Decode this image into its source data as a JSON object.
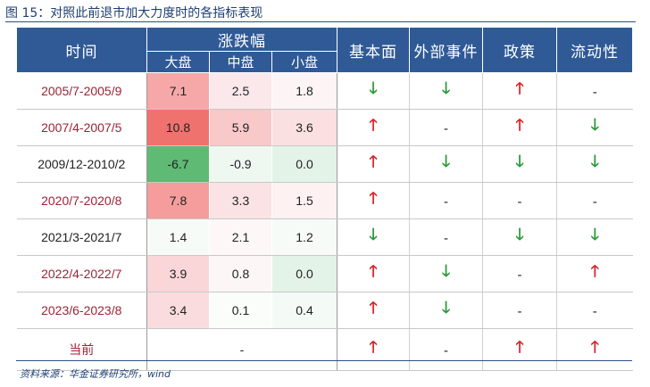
{
  "title": "图 15：对照此前退市加大力度时的各指标表现",
  "header": {
    "time": "时间",
    "change": "涨跌幅",
    "large": "大盘",
    "mid": "中盘",
    "small": "小盘",
    "fundamental": "基本面",
    "external": "外部事件",
    "policy": "政策",
    "liquidity": "流动性"
  },
  "colors": {
    "header_bg": "#2f5a96",
    "up": "#d9262c",
    "down": "#2a9a3c",
    "period_red": "#9b2335"
  },
  "rows": [
    {
      "period": "2005/7-2005/9",
      "period_color": "red",
      "large": "7.1",
      "mid": "2.5",
      "small": "1.8",
      "bg": [
        "#f6a8a8",
        "#fbe8ea",
        "#fdf5f5"
      ],
      "fundamental": "down",
      "external": "down",
      "policy": "up",
      "liquidity": "dash"
    },
    {
      "period": "2007/4-2007/5",
      "period_color": "red",
      "large": "10.8",
      "mid": "5.9",
      "small": "3.6",
      "bg": [
        "#f0726f",
        "#f9c8c9",
        "#fbe0e2"
      ],
      "fundamental": "up",
      "external": "dash",
      "policy": "up",
      "liquidity": "down"
    },
    {
      "period": "2009/12-2010/2",
      "period_color": "black",
      "large": "-6.7",
      "mid": "-0.9",
      "small": "0.0",
      "bg": [
        "#5fba73",
        "#eef7f0",
        "#e4f3e8"
      ],
      "fundamental": "up",
      "external": "down",
      "policy": "down",
      "liquidity": "down"
    },
    {
      "period": "2020/7-2020/8",
      "period_color": "red",
      "large": "7.8",
      "mid": "3.3",
      "small": "1.5",
      "bg": [
        "#f49d9c",
        "#fbe3e5",
        "#fdf1f2"
      ],
      "fundamental": "up",
      "external": "dash",
      "policy": "dash",
      "liquidity": "dash"
    },
    {
      "period": "2021/3-2021/7",
      "period_color": "black",
      "large": "1.4",
      "mid": "2.1",
      "small": "1.2",
      "bg": [
        "#f7fbf8",
        "#fdf7f8",
        "#f6fbf7"
      ],
      "fundamental": "down",
      "external": "dash",
      "policy": "down",
      "liquidity": "down"
    },
    {
      "period": "2022/4-2022/7",
      "period_color": "red",
      "large": "3.9",
      "mid": "0.8",
      "small": "0.0",
      "bg": [
        "#fad6d8",
        "#fdf6f7",
        "#e4f3e8"
      ],
      "fundamental": "up",
      "external": "down",
      "policy": "dash",
      "liquidity": "up"
    },
    {
      "period": "2023/6-2023/8",
      "period_color": "red",
      "large": "3.4",
      "mid": "0.1",
      "small": "0.4",
      "bg": [
        "#fbdcde",
        "#fbfdfb",
        "#f4faf5"
      ],
      "fundamental": "up",
      "external": "down",
      "policy": "dash",
      "liquidity": "dash"
    }
  ],
  "current": {
    "period": "当前",
    "value": "-",
    "fundamental": "up",
    "external": "dash",
    "policy": "up",
    "liquidity": "up"
  },
  "symbols": {
    "up": "🡑",
    "down": "🡓",
    "dash": "-"
  },
  "source": "资料来源：华金证券研究所，wind"
}
